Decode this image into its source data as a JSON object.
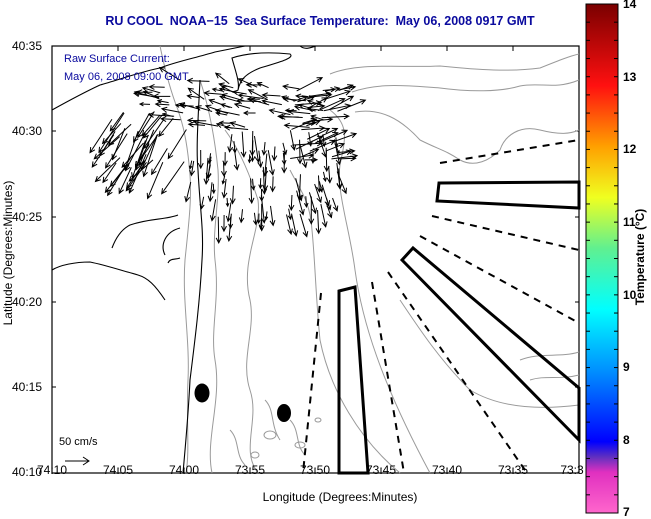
{
  "title": "RU COOL  NOAA−15  Sea Surface Temperature:  May 06, 2008 0917 GMT",
  "legend": {
    "line1": "Raw Surface Current:",
    "line2": "May 06, 2008 09:00 GMT"
  },
  "scale_arrow_label": "50 cm/s",
  "axes": {
    "xlabel": "Longitude (Degrees:Minutes)",
    "ylabel": "Latitude (Degrees:Minutes)",
    "x_ticks": [
      "74:10",
      "74:05",
      "74:00",
      "73:55",
      "73:50",
      "73:45",
      "73:40",
      "73:35",
      "73:3"
    ],
    "y_ticks": [
      "40:35",
      "40:30",
      "40:25",
      "40:20",
      "40:15",
      "40:10"
    ]
  },
  "colorbar": {
    "label": "Temperature (°C)",
    "ticks": [
      "14",
      "13",
      "12",
      "11",
      "10",
      "9",
      "8",
      "7"
    ],
    "range": [
      7,
      14
    ],
    "colors": [
      "#ff55c8",
      "#c030c0",
      "#3030e0",
      "#0000ff",
      "#0090ff",
      "#00ffff",
      "#60f090",
      "#f0ff20",
      "#ffa000",
      "#ff2000",
      "#d00000",
      "#800000"
    ]
  },
  "markers": [
    {
      "type": "filled-ellipse",
      "lon": "73:59",
      "lat": "40:14.6"
    },
    {
      "type": "filled-ellipse",
      "lon": "73:52.5",
      "lat": "40:13.5"
    }
  ]
}
